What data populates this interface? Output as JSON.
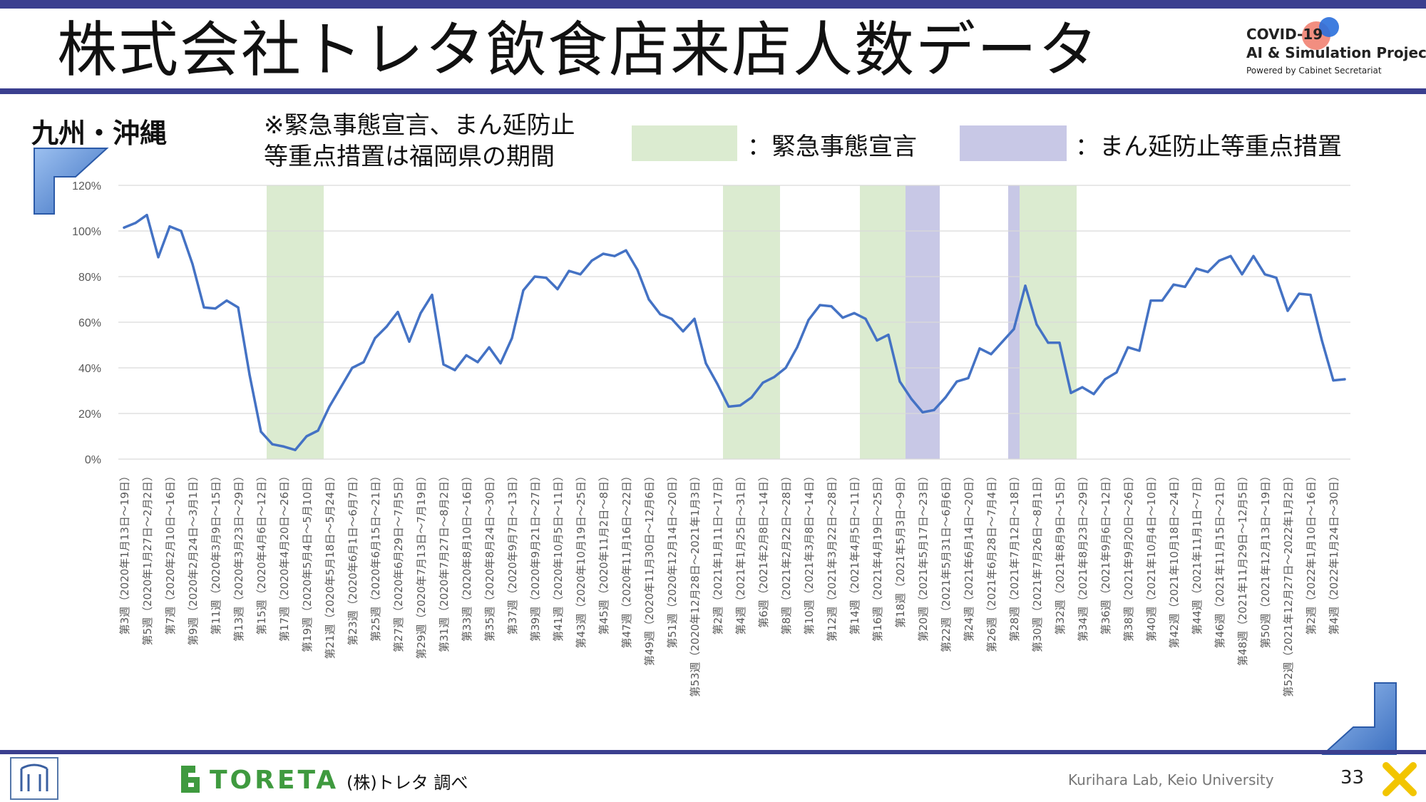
{
  "title": "株式会社トレタ飲食店来店人数データ",
  "logo": {
    "line1": "COVID-19",
    "line2": "AI & Simulation Project",
    "line3": "Powered by Cabinet Secretariat"
  },
  "region": "九州・沖縄",
  "note": {
    "line1": "※緊急事態宣言、まん延防止",
    "line2": "等重点措置は福岡県の期間"
  },
  "legend": {
    "green_label": "：緊急事態宣言",
    "purple_label": "：まん延防止等重点措置",
    "green_color": "#dbebd0",
    "purple_color": "#c8c8e6"
  },
  "footer": {
    "brand": "TORETA",
    "source": "(株)トレタ 調べ",
    "lab": "Kurihara Lab, Keio University",
    "page": "33"
  },
  "chart_data": {
    "type": "line",
    "series_color": "#4472c4",
    "ylim": [
      0,
      1.2
    ],
    "yticks": [
      "0%",
      "20%",
      "40%",
      "60%",
      "80%",
      "100%",
      "120%"
    ],
    "x_labels": [
      "第3週（2020年1月13日～19日）",
      "第5週（2020年1月27日～2月2日）",
      "第7週（2020年2月10日～16日）",
      "第9週（2020年2月24日～3月1日）",
      "第11週（2020年3月9日～15日）",
      "第13週（2020年3月23日～29日）",
      "第15週（2020年4月6日～12日）",
      "第17週（2020年4月20日～26日）",
      "第19週（2020年5月4日～5月10日）",
      "第21週（2020年5月18日～5月24日）",
      "第23週（2020年6月1日～6月7日）",
      "第25週（2020年6月15日～21日）",
      "第27週（2020年6月29日～7月5日）",
      "第29週（2020年7月13日～7月19日）",
      "第31週（2020年7月27日～8月2日）",
      "第33週（2020年8月10日～16日）",
      "第35週（2020年8月24日～30日）",
      "第37週（2020年9月7日～13日）",
      "第39週（2020年9月21日～27日）",
      "第41週（2020年10月5日～11日）",
      "第43週（2020年10月19日～25日）",
      "第45週（2020年11月2日～8日）",
      "第47週（2020年11月16日～22日）",
      "第49週（2020年11月30日～12月6日）",
      "第51週（2020年12月14日～20日）",
      "第53週（2020年12月28日～2021年1月3日）",
      "第2週（2021年1月11日～17日）",
      "第4週（2021年1月25日～31日）",
      "第6週（2021年2月8日～14日）",
      "第8週（2021年2月22日～28日）",
      "第10週（2021年3月8日～14日）",
      "第12週（2021年3月22日～28日）",
      "第14週（2021年4月5日～11日）",
      "第16週（2021年4月19日～25日）",
      "第18週（2021年5月3日～9日）",
      "第20週（2021年5月17日～23日）",
      "第22週（2021年5月31日～6月6日）",
      "第24週（2021年6月14日～20日）",
      "第26週（2021年6月28日～7月4日）",
      "第28週（2021年7月12日～18日）",
      "第30週（2021年7月26日～8月1日）",
      "第32週（2021年8月9日～15日）",
      "第34週（2021年8月23日～29日）",
      "第36週（2021年9月6日～12日）",
      "第38週（2021年9月20日～26日）",
      "第40週（2021年10月4日～10日）",
      "第42週（2021年10月18日～24日）",
      "第44週（2021年11月1日～7日）",
      "第46週（2021年11月15日～21日）",
      "第48週（2021年11月29日～12月5日）",
      "第50週（2021年12月13日～19日）",
      "第52週（2021年12月27日～2022年1月2日）",
      "第2週（2022年1月10日～16日）",
      "第4週（2022年1月24日～30日）"
    ],
    "values": [
      1.015,
      1.035,
      1.07,
      0.885,
      1.02,
      1.0,
      0.855,
      0.665,
      0.66,
      0.695,
      0.665,
      0.37,
      0.12,
      0.065,
      0.055,
      0.04,
      0.1,
      0.125,
      0.23,
      0.315,
      0.4,
      0.425,
      0.53,
      0.58,
      0.645,
      0.515,
      0.64,
      0.72,
      0.415,
      0.39,
      0.455,
      0.425,
      0.49,
      0.42,
      0.53,
      0.74,
      0.8,
      0.795,
      0.745,
      0.825,
      0.81,
      0.87,
      0.9,
      0.89,
      0.915,
      0.83,
      0.7,
      0.635,
      0.615,
      0.56,
      0.615,
      0.42,
      0.33,
      0.23,
      0.235,
      0.27,
      0.335,
      0.36,
      0.4,
      0.49,
      0.61,
      0.675,
      0.67,
      0.62,
      0.64,
      0.615,
      0.52,
      0.545,
      0.34,
      0.265,
      0.205,
      0.215,
      0.27,
      0.34,
      0.355,
      0.485,
      0.46,
      0.515,
      0.57,
      0.76,
      0.59,
      0.51,
      0.51,
      0.29,
      0.315,
      0.285,
      0.35,
      0.38,
      0.49,
      0.475,
      0.695,
      0.695,
      0.765,
      0.755,
      0.835,
      0.82,
      0.87,
      0.89,
      0.81,
      0.89,
      0.81,
      0.795,
      0.65,
      0.725,
      0.72,
      0.52,
      0.345,
      0.35
    ],
    "bands": [
      {
        "kind": "emergency",
        "start": 13,
        "end": 17
      },
      {
        "kind": "emergency",
        "start": 53,
        "end": 57
      },
      {
        "kind": "emergency",
        "start": 65,
        "end": 69
      },
      {
        "kind": "priority",
        "start": 69,
        "end": 71
      },
      {
        "kind": "priority",
        "start": 78,
        "end": 79
      },
      {
        "kind": "emergency",
        "start": 79,
        "end": 83
      }
    ]
  }
}
